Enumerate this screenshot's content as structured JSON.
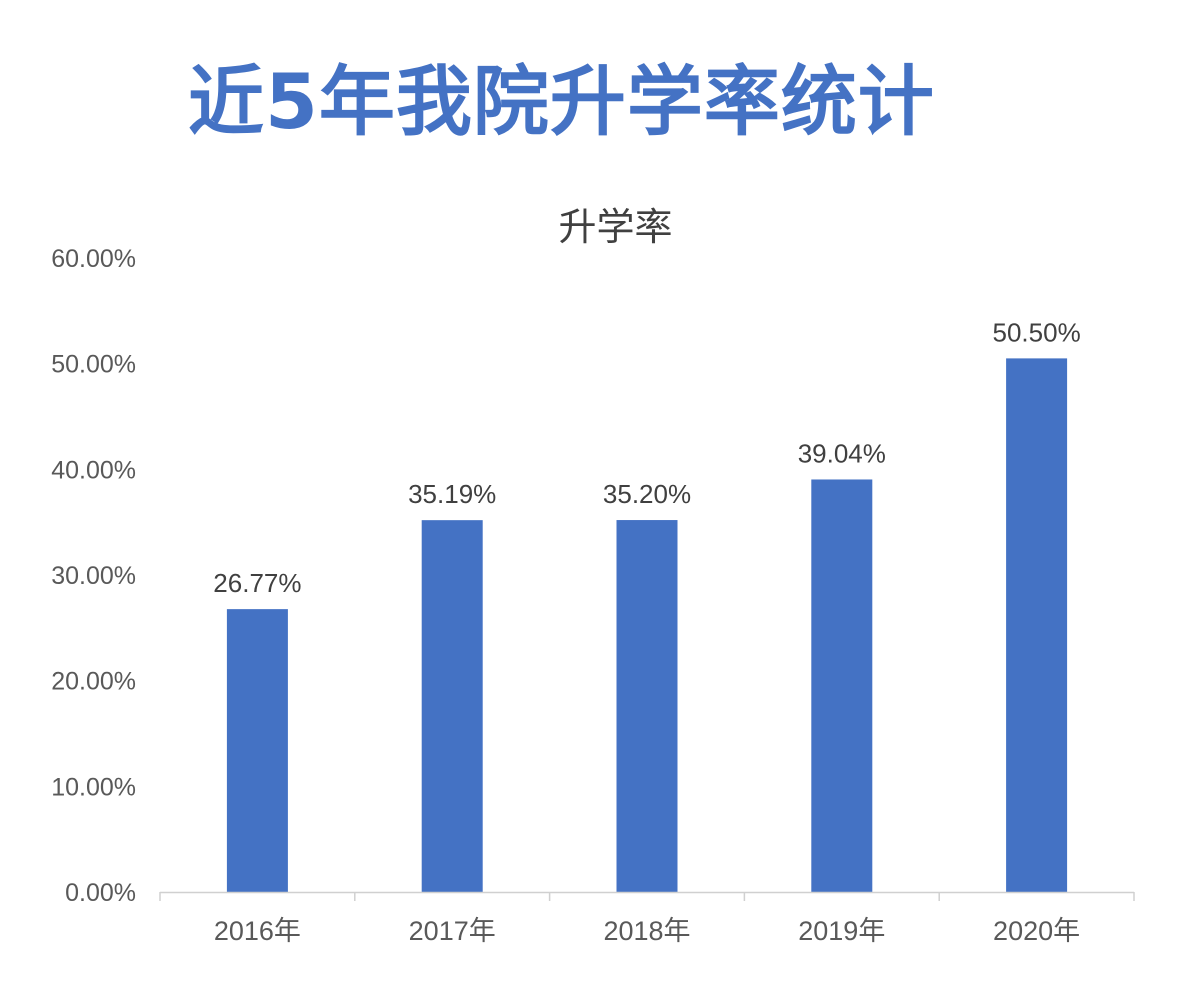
{
  "header": {
    "title": "近5年我院升学率统计"
  },
  "chart_data": {
    "type": "bar",
    "title": "升学率",
    "xlabel": "",
    "ylabel": "",
    "categories": [
      "2016年",
      "2017年",
      "2018年",
      "2019年",
      "2020年"
    ],
    "values": [
      26.77,
      35.19,
      35.2,
      39.04,
      50.5
    ],
    "data_labels": [
      "26.77%",
      "35.19%",
      "35.20%",
      "39.04%",
      "50.50%"
    ],
    "ylim": [
      0,
      60
    ],
    "yticks": [
      0,
      10,
      20,
      30,
      40,
      50,
      60
    ],
    "ytick_labels": [
      "0.00%",
      "10.00%",
      "20.00%",
      "30.00%",
      "40.00%",
      "50.00%",
      "60.00%"
    ],
    "grid": false,
    "legend": "none",
    "bar_color": "#4472C4"
  }
}
